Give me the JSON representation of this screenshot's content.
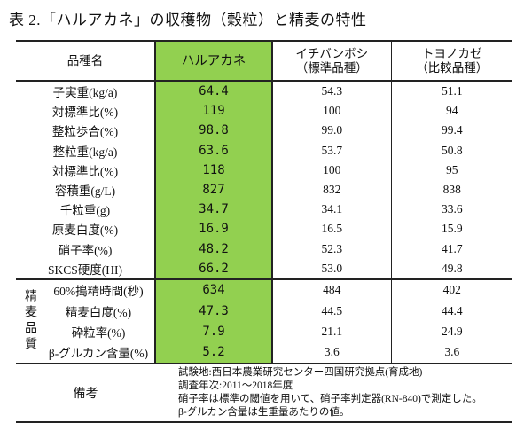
{
  "title": "表 2.「ハルアカネ」の収穫物（穀粒）と精麦の特性",
  "header": {
    "item": "品種名",
    "harukane": "ハルアカネ",
    "ichiban_1": "イチバンボシ",
    "ichiban_2": "（標準品種）",
    "toyo_1": "トヨノカゼ",
    "toyo_2": "（比較品種）"
  },
  "highlight_color": "#92d050",
  "rows": [
    {
      "label": "子実重(kg/a)",
      "a": "64.4",
      "b": "54.3",
      "c": "51.1"
    },
    {
      "label": "対標準比(%)",
      "a": "119",
      "b": "100",
      "c": "94"
    },
    {
      "label": "整粒歩合(%)",
      "a": "98.8",
      "b": "99.0",
      "c": "99.4"
    },
    {
      "label": "整粒重(kg/a)",
      "a": "63.6",
      "b": "53.7",
      "c": "50.8"
    },
    {
      "label": "対標準比(%)",
      "a": "118",
      "b": "100",
      "c": "95"
    },
    {
      "label": "容積重(g/L)",
      "a": "827",
      "b": "832",
      "c": "838"
    },
    {
      "label": "千粒重(g)",
      "a": "34.7",
      "b": "34.1",
      "c": "33.6"
    },
    {
      "label": "原麦白度(%)",
      "a": "16.9",
      "b": "16.5",
      "c": "15.9"
    },
    {
      "label": "硝子率(%)",
      "a": "48.2",
      "b": "52.3",
      "c": "41.7"
    },
    {
      "label": "SKCS硬度(HI)",
      "a": "66.2",
      "b": "53.0",
      "c": "49.8"
    }
  ],
  "quality_group": "精麦品質",
  "quality_rows": [
    {
      "label": "60%搗精時間(秒)",
      "a": "634",
      "b": "484",
      "c": "402"
    },
    {
      "label": "精麦白度(%)",
      "a": "47.3",
      "b": "44.5",
      "c": "44.4"
    },
    {
      "label": "砕粒率(%)",
      "a": "7.9",
      "b": "21.1",
      "c": "24.9"
    },
    {
      "label": "β-グルカン含量(%)",
      "a": "5.2",
      "b": "3.6",
      "c": "3.6"
    }
  ],
  "remarks": {
    "label": "備考",
    "lines": [
      "試験地:西日本農業研究センター四国研究拠点(育成地)",
      "調査年次:2011～2018年度",
      "硝子率は標準の閾値を用いて、硝子率判定器(RN-840)で測定した。",
      "β-グルカン含量は生重量あたりの値。"
    ]
  }
}
